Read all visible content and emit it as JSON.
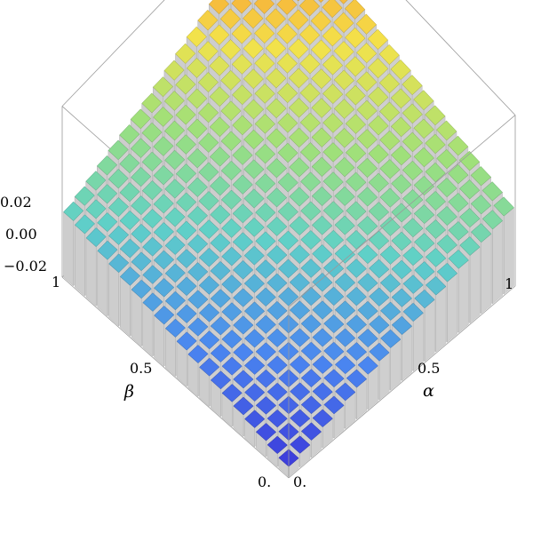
{
  "chart_data": {
    "type": "3d-bar",
    "title": "",
    "xlabel": "α",
    "ylabel": "β",
    "zlabel": "",
    "x_ticks": [
      "0.",
      "0.5",
      "1"
    ],
    "y_ticks": [
      "0.",
      "0.5",
      "1"
    ],
    "z_ticks": [
      "0.02",
      "0.00",
      "−0.02"
    ],
    "z_tick_values": [
      0.02,
      0.0,
      -0.02
    ],
    "xlim": [
      0,
      1
    ],
    "ylim": [
      0,
      1
    ],
    "zlim": [
      -0.028,
      0.032
    ],
    "grid_size": 20,
    "surface": {
      "description_free_corners": {
        "alpha0_beta0": -0.027,
        "alpha1_beta0": 0.004,
        "alpha0_beta1": -0.002,
        "alpha1_beta1": 0.03
      },
      "peak_alpha": 0.72,
      "peak_value": 0.03
    },
    "colors": {
      "low": "#3a2fd8",
      "mid": "#9fe07a",
      "high": "#f2401e",
      "side": "#e4e4e4",
      "box": "#9a9a9a"
    }
  }
}
